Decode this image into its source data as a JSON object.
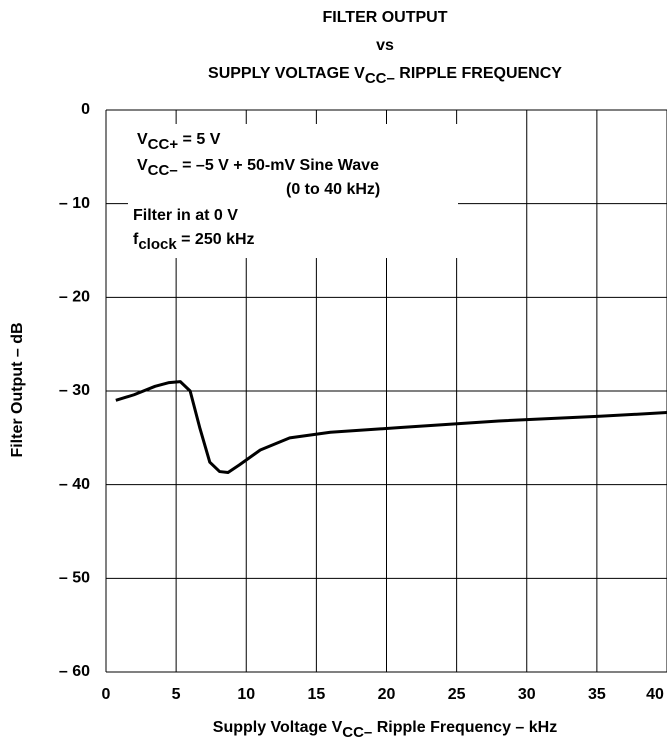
{
  "chart_data": {
    "type": "line",
    "title_lines": [
      [
        "FILTER OUTPUT"
      ],
      [
        "vs"
      ],
      [
        "SUPPLY VOLTAGE V",
        "CC–",
        " RIPPLE FREQUENCY"
      ]
    ],
    "xlabel": [
      "Supply Voltage V",
      "CC–",
      " Ripple Frequency – kHz"
    ],
    "ylabel": "Filter Output – dB",
    "annotations": [
      [
        "V",
        "CC+",
        " = 5 V"
      ],
      [
        "V",
        "CC–",
        " = –5 V + 50-mV Sine Wave"
      ],
      [
        "(0 to 40 kHz)"
      ],
      [
        "Filter in at 0 V"
      ],
      [
        "f",
        "clock",
        " = 250 kHz"
      ]
    ],
    "x": [
      0.7,
      2,
      3.5,
      4.5,
      5.3,
      6,
      6.7,
      7.4,
      8.1,
      8.7,
      9.5,
      11,
      13.1,
      16,
      21,
      28,
      35.2,
      40
    ],
    "values": [
      -31.0,
      -30.4,
      -29.5,
      -29.1,
      -29.0,
      -30.0,
      -34.0,
      -37.6,
      -38.6,
      -38.7,
      -37.9,
      -36.3,
      -35.0,
      -34.4,
      -33.9,
      -33.2,
      -32.7,
      -32.3
    ],
    "color": "#000000",
    "xlim": [
      0,
      40
    ],
    "xticks": [
      0,
      5,
      10,
      15,
      20,
      25,
      30,
      35,
      40
    ],
    "ylim": [
      -60,
      0
    ],
    "yticks": [
      {
        "value": -60,
        "label": "– 60"
      },
      {
        "value": -50,
        "label": "– 50"
      },
      {
        "value": -40,
        "label": "– 40"
      },
      {
        "value": -30,
        "label": "– 30"
      },
      {
        "value": -20,
        "label": "– 20"
      },
      {
        "value": -10,
        "label": "– 10"
      },
      0
    ],
    "grid": true
  }
}
